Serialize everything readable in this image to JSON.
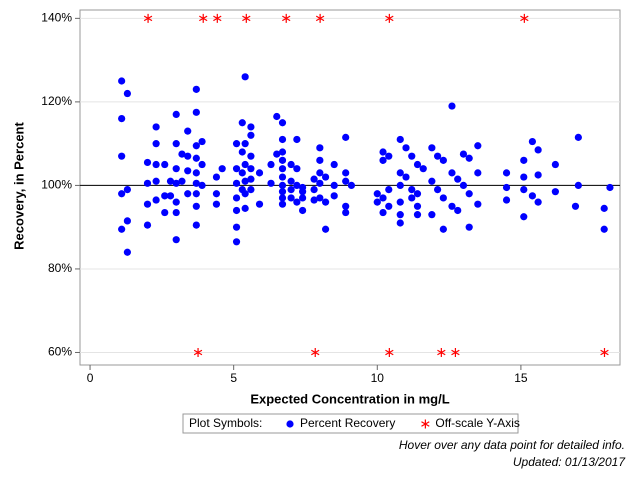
{
  "chart_data": {
    "type": "scatter",
    "x_label": "Expected Concentration in mg/L",
    "y_label": "Recovery, in Percent",
    "xlim": [
      -0.35,
      18.45
    ],
    "ylim": [
      57,
      142
    ],
    "xticks": [
      0,
      5,
      10,
      15
    ],
    "yticks": [
      {
        "value": 60,
        "label": "60%"
      },
      {
        "value": 80,
        "label": "80%"
      },
      {
        "value": 100,
        "label": "100%"
      },
      {
        "value": 120,
        "label": "120%"
      },
      {
        "value": 140,
        "label": "140%"
      }
    ],
    "grid": true,
    "reference_y": 100,
    "legend_title": "Plot Symbols:",
    "series": [
      {
        "name": "Percent Recovery",
        "color": "#0000ff",
        "marker": "circle",
        "x": [
          1.1,
          1.1,
          1.1,
          1.1,
          1.1,
          1.3,
          1.3,
          1.3,
          1.3,
          2.0,
          2.0,
          2.0,
          2.0,
          2.3,
          2.3,
          2.3,
          2.3,
          2.3,
          2.6,
          2.6,
          2.6,
          2.8,
          2.8,
          3.0,
          3.0,
          3.0,
          3.0,
          3.0,
          3.0,
          3.0,
          3.2,
          3.2,
          3.4,
          3.4,
          3.4,
          3.4,
          3.7,
          3.7,
          3.7,
          3.7,
          3.7,
          3.7,
          3.7,
          3.7,
          3.7,
          3.9,
          3.9,
          3.9,
          4.4,
          4.4,
          4.4,
          4.6,
          5.1,
          5.1,
          5.1,
          5.1,
          5.1,
          5.1,
          5.1,
          5.3,
          5.3,
          5.3,
          5.3,
          5.4,
          5.4,
          5.4,
          5.4,
          5.4,
          5.4,
          5.6,
          5.6,
          5.6,
          5.6,
          5.6,
          5.6,
          5.9,
          5.9,
          6.3,
          6.3,
          6.5,
          6.5,
          6.7,
          6.7,
          6.7,
          6.7,
          6.7,
          6.7,
          6.7,
          6.7,
          6.7,
          6.7,
          7.0,
          7.0,
          7.0,
          7.0,
          7.2,
          7.2,
          7.2,
          7.2,
          7.4,
          7.4,
          7.4,
          7.4,
          7.8,
          7.8,
          7.8,
          8.0,
          8.0,
          8.0,
          8.0,
          8.0,
          8.2,
          8.2,
          8.2,
          8.5,
          8.5,
          8.5,
          8.9,
          8.9,
          8.9,
          8.9,
          8.9,
          9.1,
          10.0,
          10.0,
          10.2,
          10.2,
          10.2,
          10.2,
          10.4,
          10.4,
          10.4,
          10.8,
          10.8,
          10.8,
          10.8,
          10.8,
          10.8,
          11.0,
          11.0,
          11.2,
          11.2,
          11.2,
          11.4,
          11.4,
          11.4,
          11.4,
          11.6,
          11.9,
          11.9,
          11.9,
          12.1,
          12.1,
          12.3,
          12.3,
          12.3,
          12.6,
          12.6,
          12.6,
          12.8,
          12.8,
          13.0,
          13.0,
          13.2,
          13.2,
          13.2,
          13.5,
          13.5,
          13.5,
          14.5,
          14.5,
          14.5,
          15.1,
          15.1,
          15.1,
          15.1,
          15.4,
          15.4,
          15.6,
          15.6,
          15.6,
          16.2,
          16.2,
          16.9,
          17.0,
          17.0,
          17.9,
          17.9,
          18.1
        ],
        "values": [
          125,
          116,
          107,
          98,
          89.5,
          122,
          99,
          91.5,
          84,
          105.5,
          100.5,
          95.5,
          90.5,
          114,
          110,
          105,
          101,
          96.5,
          105,
          97.5,
          93.5,
          101,
          97.5,
          117,
          110,
          104,
          100.5,
          96,
          93.5,
          87,
          107.5,
          101,
          113,
          107,
          103.5,
          98,
          123,
          117.5,
          109.5,
          106.5,
          103,
          100.5,
          98,
          95,
          90.5,
          110.5,
          105,
          100,
          102,
          98,
          95.5,
          104,
          110,
          104,
          100.5,
          97,
          94,
          90,
          86.5,
          115,
          108,
          103,
          99,
          126,
          110,
          105,
          101,
          98,
          94.5,
          114,
          112,
          107,
          104,
          101.5,
          99,
          95.5,
          103,
          105,
          100.5,
          116.5,
          107.5,
          115,
          111,
          108,
          106,
          104,
          102,
          100,
          98.5,
          97,
          95.5,
          105,
          101,
          99,
          97,
          111,
          104,
          100,
          96,
          99.5,
          98.5,
          97,
          94,
          101.5,
          99,
          96.5,
          109,
          106,
          103,
          100.5,
          97,
          89.5,
          102,
          96,
          105,
          100,
          97.5,
          111.5,
          103,
          101,
          95,
          93.5,
          100,
          98,
          96,
          108,
          106,
          97,
          93.5,
          107,
          95,
          99,
          111,
          103,
          100,
          96,
          93,
          91,
          109,
          102,
          107,
          99,
          97,
          105,
          98,
          95,
          93,
          104,
          109,
          101,
          93,
          107,
          99,
          106,
          89.5,
          97,
          119,
          103,
          95,
          101.5,
          94,
          107.5,
          100,
          106.5,
          98,
          90,
          109.5,
          103,
          95.5,
          103,
          99.5,
          96.5,
          106,
          102,
          99,
          92.5,
          110.5,
          97.5,
          108.5,
          102.5,
          96,
          105,
          98.5,
          95,
          111.5,
          100,
          94.5,
          89.5,
          99.5
        ]
      },
      {
        "name": "Off-scale Y-Axis",
        "color": "#ff0000",
        "marker": "star",
        "x": [
          2.02,
          3.94,
          4.43,
          5.44,
          6.83,
          8.01,
          10.42,
          15.12,
          3.76,
          7.84,
          10.42,
          12.23,
          12.72,
          17.91
        ],
        "values": [
          140,
          140,
          140,
          140,
          140,
          140,
          140,
          140,
          60,
          60,
          60,
          60,
          60,
          60
        ]
      }
    ],
    "footnotes": [
      "Hover over any data point for detailed info.",
      "Updated: 01/13/2017"
    ]
  }
}
